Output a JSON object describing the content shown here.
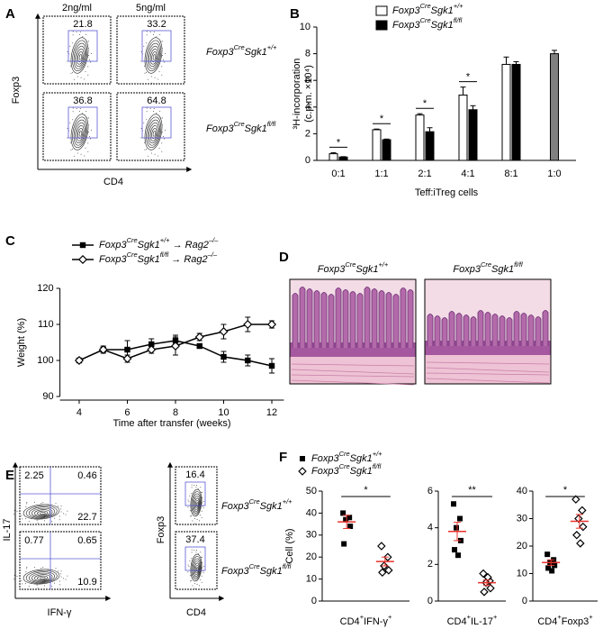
{
  "panel_labels": [
    "A",
    "B",
    "C",
    "D",
    "E",
    "F"
  ],
  "genotypes": [
    [
      "Foxp3",
      "Cre",
      "Sgk1",
      "+/+"
    ],
    [
      "Foxp3",
      "Cre",
      "Sgk1",
      "fl/fl"
    ]
  ],
  "flow_a": {
    "columns": [
      "2ng/ml",
      "5ng/ml"
    ],
    "y_label": "Foxp3",
    "x_label": "CD4",
    "gates": [
      [
        21.8,
        33.2
      ],
      [
        36.8,
        64.8
      ]
    ]
  },
  "flow_e": {
    "left": {
      "y_label": "IL-17",
      "x_label": "IFN-γ",
      "quadrants": [
        [
          2.25,
          0.46,
          22.7
        ],
        [
          0.77,
          0.65,
          10.9
        ]
      ]
    },
    "right": {
      "y_label": "Foxp3",
      "x_label": "CD4",
      "gates": [
        16.4,
        37.4
      ]
    }
  },
  "chart_data": [
    {
      "type": "bar",
      "y_label": [
        "³H-incorporation",
        "(c.p.m. ×10⁴)"
      ],
      "x_label": "Teff:iTreg cells",
      "categories": [
        "0:1",
        "1:1",
        "2:1",
        "4:1",
        "8:1",
        "1:0"
      ],
      "series": [
        {
          "name": [
            "Foxp3",
            "Cre",
            "Sgk1",
            "+/+"
          ],
          "color": "#ffffff",
          "values": [
            0.5,
            2.3,
            3.4,
            4.9,
            7.2,
            null
          ],
          "errors": [
            0.08,
            0.05,
            0.1,
            0.6,
            0.55,
            null
          ]
        },
        {
          "name": [
            "Foxp3",
            "Cre",
            "Sgk1",
            "fl/fl"
          ],
          "color": "#000000",
          "values": [
            0.25,
            1.55,
            2.15,
            3.8,
            7.2,
            null
          ],
          "errors": [
            0.03,
            0.05,
            0.3,
            0.3,
            0.2,
            null
          ]
        },
        {
          "color": "#808080",
          "values": [
            null,
            null,
            null,
            null,
            null,
            8.0
          ],
          "errors": [
            null,
            null,
            null,
            null,
            null,
            0.25
          ]
        }
      ],
      "significance": [
        {
          "category": 0,
          "label": "*"
        },
        {
          "category": 1,
          "label": "*"
        },
        {
          "category": 2,
          "label": "*"
        },
        {
          "category": 3,
          "label": "*"
        }
      ],
      "ylim": [
        0,
        10
      ],
      "yticks": [
        0,
        2,
        4,
        6,
        8,
        10
      ]
    },
    {
      "type": "line",
      "y_label": "Weight (%)",
      "x_label": "Time after transfer (weeks)",
      "x": [
        4,
        5,
        6,
        7,
        8,
        9,
        10,
        11,
        12
      ],
      "series": [
        {
          "name": [
            "Foxp3",
            "Cre",
            "Sgk1",
            "+/+",
            " → Rag2",
            "–/–"
          ],
          "color": "#000000",
          "marker": "square",
          "values": [
            100,
            103,
            103,
            104.5,
            105.5,
            104,
            101,
            100,
            98.5
          ],
          "errors": [
            0.5,
            1,
            2.5,
            1.5,
            1.5,
            0.5,
            1.5,
            1.5,
            2
          ]
        },
        {
          "name": [
            "Foxp3",
            "Cre",
            "Sgk1",
            "fl/fl",
            " → Rag2",
            "–/–"
          ],
          "color": "#000000",
          "marker": "diamond",
          "values": [
            100,
            103,
            100.5,
            103,
            104,
            106.5,
            108,
            110,
            110
          ],
          "errors": [
            0.5,
            0.5,
            1,
            1,
            2.5,
            1,
            2,
            2,
            1
          ]
        }
      ],
      "xlim": [
        3.5,
        12.5
      ],
      "xticks": [
        4,
        6,
        8,
        10,
        12
      ],
      "ylim": [
        90,
        120
      ],
      "yticks": [
        90,
        100,
        110,
        120
      ]
    },
    {
      "type": "dot",
      "y_label": "Cell (%)",
      "x_label": [
        "CD4",
        "+",
        "IFN-γ",
        "+"
      ],
      "significance": "*",
      "series": [
        {
          "name": [
            "Foxp3",
            "Cre",
            "Sgk1",
            "+/+"
          ],
          "color": "#000000",
          "marker": "square",
          "values": [
            40,
            38,
            37,
            34,
            26
          ],
          "mean": 36,
          "sem": 3
        },
        {
          "name": [
            "Foxp3",
            "Cre",
            "Sgk1",
            "fl/fl"
          ],
          "color": "#000000",
          "marker": "diamond",
          "values": [
            25,
            20,
            16,
            14,
            13
          ],
          "mean": 18,
          "sem": 2
        }
      ],
      "mean_color": "#e8322b",
      "ylim": [
        0,
        50
      ],
      "yticks": [
        0,
        10,
        20,
        30,
        40,
        50
      ]
    },
    {
      "type": "dot",
      "x_label": [
        "CD4",
        "+",
        "IL-17",
        "+"
      ],
      "significance": "**",
      "series": [
        {
          "color": "#000000",
          "marker": "square",
          "values": [
            5.3,
            4.5,
            4,
            3.3,
            2.8,
            2.5
          ],
          "mean": 3.8,
          "sem": 0.5
        },
        {
          "color": "#000000",
          "marker": "diamond",
          "values": [
            1.5,
            1.1,
            1.0,
            0.7,
            0.5,
            1.3
          ],
          "mean": 1.0,
          "sem": 0.15
        }
      ],
      "mean_color": "#e8322b",
      "ylim": [
        0,
        6
      ],
      "yticks": [
        0,
        2,
        4,
        6
      ]
    },
    {
      "type": "dot",
      "x_label": [
        "CD4",
        "+",
        "Foxp3",
        "+"
      ],
      "significance": "*",
      "series": [
        {
          "color": "#000000",
          "marker": "square",
          "values": [
            17,
            15,
            14,
            13,
            12,
            11
          ],
          "mean": 14,
          "sem": 1
        },
        {
          "color": "#000000",
          "marker": "diamond",
          "values": [
            37,
            33,
            30,
            27,
            24,
            21
          ],
          "mean": 29,
          "sem": 2.5
        }
      ],
      "mean_color": "#e8322b",
      "ylim": [
        0,
        40
      ],
      "yticks": [
        0,
        10,
        20,
        30,
        40
      ]
    }
  ]
}
